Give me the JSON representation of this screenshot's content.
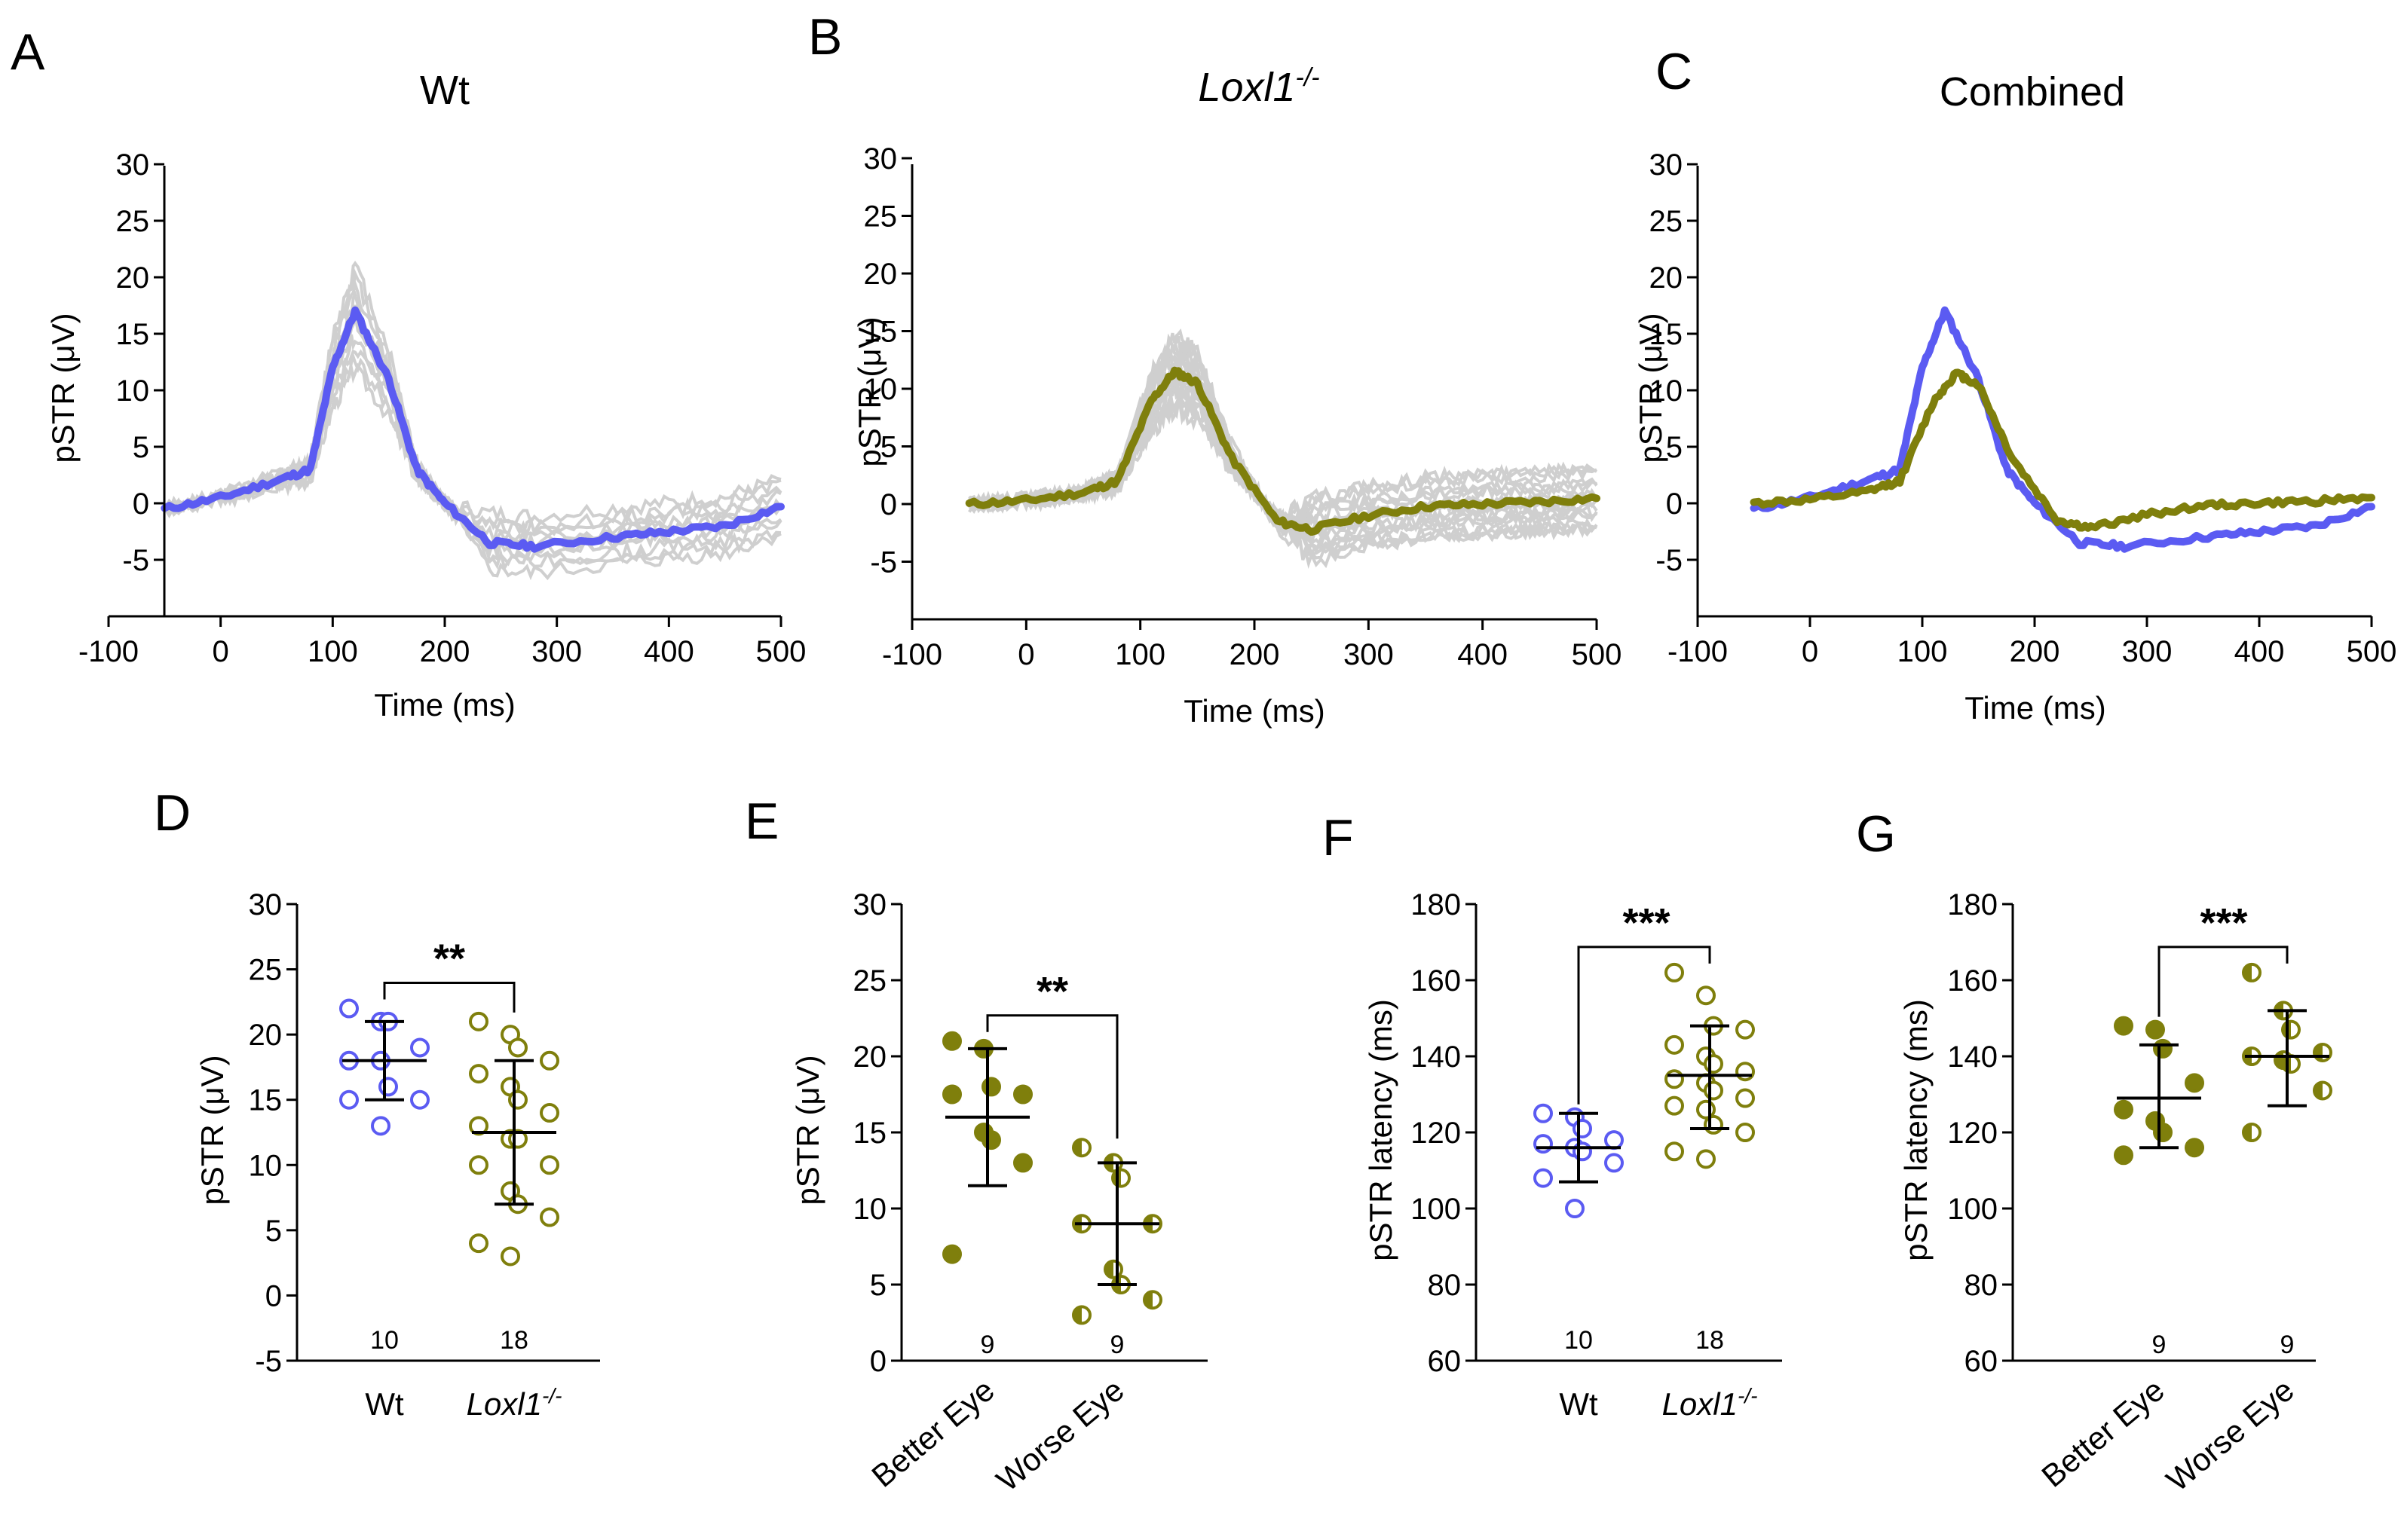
{
  "colors": {
    "wt": "#5b5bf2",
    "loxl1": "#7f7f0c",
    "individual": "#cfcfcf"
  },
  "chart_data": [
    {
      "id": "A",
      "type": "line",
      "title": "Wt",
      "xlabel": "Time (ms)",
      "ylabel": "pSTR (μV)",
      "xlim": [
        -100,
        500
      ],
      "ylim": [
        -10,
        30
      ],
      "xticks": [
        "-100",
        "0",
        "100",
        "200",
        "300",
        "400",
        "500"
      ],
      "yticks": [
        "-5",
        "0",
        "5",
        "10",
        "15",
        "20",
        "25",
        "30"
      ],
      "series": [
        {
          "name": "Wt mean",
          "color": "#5b5bf2",
          "x": [
            -50,
            0,
            50,
            80,
            100,
            120,
            150,
            175,
            200,
            240,
            280,
            350,
            400,
            450,
            500
          ],
          "y": [
            -0.5,
            0.5,
            2,
            3,
            12,
            17,
            11,
            3,
            0,
            -3.5,
            -3.8,
            -3,
            -2.5,
            -2,
            -0.3
          ]
        }
      ],
      "individual_traces": 10
    },
    {
      "id": "B",
      "type": "line",
      "title": "Loxl1-/-",
      "xlabel": "Time (ms)",
      "ylabel": "pSTR (μV)",
      "xlim": [
        -100,
        500
      ],
      "ylim": [
        -10,
        30
      ],
      "xticks": [
        "-100",
        "0",
        "100",
        "200",
        "300",
        "400",
        "500"
      ],
      "yticks": [
        "-5",
        "0",
        "5",
        "10",
        "15",
        "20",
        "25",
        "30"
      ],
      "series": [
        {
          "name": "Loxl1-/- mean",
          "color": "#7f7f0c",
          "x": [
            -50,
            0,
            50,
            80,
            110,
            130,
            150,
            180,
            220,
            250,
            300,
            350,
            400,
            450,
            500
          ],
          "y": [
            0,
            0.3,
            1,
            2,
            9,
            11.5,
            10.5,
            4,
            -1.5,
            -2.2,
            -1,
            -0.2,
            0,
            0.2,
            0.5
          ]
        }
      ],
      "individual_traces": 18
    },
    {
      "id": "C",
      "type": "line",
      "title": "Combined",
      "xlabel": "Time (ms)",
      "ylabel": "pSTR (μV)",
      "xlim": [
        -100,
        500
      ],
      "ylim": [
        -10,
        30
      ],
      "xticks": [
        "-100",
        "0",
        "100",
        "200",
        "300",
        "400",
        "500"
      ],
      "yticks": [
        "-5",
        "0",
        "5",
        "10",
        "15",
        "20",
        "25",
        "30"
      ],
      "series": [
        {
          "name": "Wt mean",
          "color": "#5b5bf2",
          "x": [
            -50,
            0,
            50,
            80,
            100,
            120,
            150,
            175,
            200,
            240,
            280,
            350,
            400,
            450,
            500
          ],
          "y": [
            -0.5,
            0.5,
            2,
            3,
            12,
            17,
            11,
            3,
            0,
            -3.5,
            -3.8,
            -3,
            -2.5,
            -2,
            -0.3
          ]
        },
        {
          "name": "Loxl1-/- mean",
          "color": "#7f7f0c",
          "x": [
            -50,
            0,
            50,
            80,
            110,
            130,
            150,
            180,
            220,
            250,
            300,
            350,
            400,
            450,
            500
          ],
          "y": [
            0,
            0.3,
            1,
            2,
            9,
            11.5,
            10.5,
            4,
            -1.5,
            -2.2,
            -1,
            -0.2,
            0,
            0.2,
            0.5
          ]
        }
      ]
    },
    {
      "id": "D",
      "type": "scatter",
      "ylabel": "pSTR (μV)",
      "ylim": [
        -5,
        30
      ],
      "yticks": [
        "-5",
        "0",
        "5",
        "10",
        "15",
        "20",
        "25",
        "30"
      ],
      "significance": "**",
      "groups": [
        {
          "name": "Wt",
          "n": "10",
          "mean": 18,
          "sd_low": 15,
          "sd_high": 21,
          "color": "#5b5bf2",
          "values": [
            22,
            21,
            21,
            19,
            18,
            18,
            16,
            15,
            15,
            13
          ],
          "fill": [
            "open",
            "open",
            "open",
            "open",
            "open",
            "open",
            "open",
            "open",
            "open",
            "open"
          ]
        },
        {
          "name": "Loxl1-/-",
          "n": "18",
          "mean": 12.5,
          "sd_low": 7,
          "sd_high": 18,
          "color": "#7f7f0c",
          "values": [
            21,
            20,
            19,
            18,
            17,
            16,
            15,
            14,
            13,
            12,
            12,
            10,
            10,
            8,
            7,
            6,
            4,
            3
          ],
          "fill": [
            "open",
            "open",
            "open",
            "open",
            "open",
            "open",
            "open",
            "open",
            "open",
            "open",
            "open",
            "open",
            "open",
            "open",
            "open",
            "open",
            "open",
            "open"
          ]
        }
      ]
    },
    {
      "id": "E",
      "type": "scatter",
      "ylabel": "pSTR (μV)",
      "ylim": [
        0,
        30
      ],
      "yticks": [
        "0",
        "5",
        "10",
        "15",
        "20",
        "25",
        "30"
      ],
      "significance": "**",
      "groups": [
        {
          "name": "Better Eye",
          "n": "9",
          "mean": 16,
          "sd_low": 11.5,
          "sd_high": 20.5,
          "color": "#7f7f0c",
          "values": [
            21,
            20.5,
            18,
            17.5,
            17.5,
            15,
            14.5,
            13,
            7
          ],
          "fill": [
            "filled",
            "filled",
            "filled",
            "filled",
            "filled",
            "filled",
            "filled",
            "filled",
            "filled"
          ]
        },
        {
          "name": "Worse Eye",
          "n": "9",
          "mean": 9,
          "sd_low": 5,
          "sd_high": 13,
          "color": "#7f7f0c",
          "values": [
            14,
            13,
            12,
            9,
            9,
            6,
            5,
            4,
            3
          ],
          "fill": [
            "half",
            "half",
            "half",
            "half",
            "half",
            "half",
            "half",
            "half",
            "half"
          ]
        }
      ]
    },
    {
      "id": "F",
      "type": "scatter",
      "ylabel": "pSTR latency (ms)",
      "ylim": [
        60,
        180
      ],
      "yticks": [
        "60",
        "80",
        "100",
        "120",
        "140",
        "160",
        "180"
      ],
      "significance": "***",
      "groups": [
        {
          "name": "Wt",
          "n": "10",
          "mean": 116,
          "sd_low": 107,
          "sd_high": 125,
          "color": "#5b5bf2",
          "values": [
            125,
            124,
            121,
            118,
            117,
            116,
            115,
            112,
            108,
            100
          ],
          "fill": [
            "open",
            "open",
            "open",
            "open",
            "open",
            "open",
            "open",
            "open",
            "open",
            "open"
          ]
        },
        {
          "name": "Loxl1-/-",
          "n": "18",
          "mean": 135,
          "sd_low": 121,
          "sd_high": 148,
          "color": "#7f7f0c",
          "values": [
            162,
            156,
            148,
            147,
            143,
            140,
            138,
            136,
            134,
            133,
            131,
            129,
            127,
            126,
            122,
            120,
            115,
            113
          ],
          "fill": [
            "open",
            "open",
            "open",
            "open",
            "open",
            "open",
            "open",
            "open",
            "open",
            "open",
            "open",
            "open",
            "open",
            "open",
            "open",
            "open",
            "open",
            "open"
          ]
        }
      ]
    },
    {
      "id": "G",
      "type": "scatter",
      "ylabel": "pSTR latency (ms)",
      "ylim": [
        60,
        180
      ],
      "yticks": [
        "60",
        "80",
        "100",
        "120",
        "140",
        "160",
        "180"
      ],
      "significance": "***",
      "groups": [
        {
          "name": "Better Eye",
          "n": "9",
          "mean": 129,
          "sd_low": 116,
          "sd_high": 143,
          "color": "#7f7f0c",
          "values": [
            148,
            147,
            142,
            133,
            126,
            123,
            120,
            116,
            114
          ],
          "fill": [
            "filled",
            "filled",
            "filled",
            "filled",
            "filled",
            "filled",
            "filled",
            "filled",
            "filled"
          ]
        },
        {
          "name": "Worse Eye",
          "n": "9",
          "mean": 140,
          "sd_low": 127,
          "sd_high": 152,
          "color": "#7f7f0c",
          "values": [
            162,
            152,
            147,
            141,
            140,
            139,
            138,
            131,
            120
          ],
          "fill": [
            "half",
            "half",
            "half",
            "half",
            "half",
            "half",
            "half",
            "half",
            "half"
          ]
        }
      ]
    }
  ],
  "panel_labels": [
    "A",
    "B",
    "C",
    "D",
    "E",
    "F",
    "G"
  ],
  "titles": {
    "a": "Wt",
    "b_main": "Loxl1",
    "b_sup": "-/-",
    "c": "Combined"
  },
  "axis_labels": {
    "time": "Time (ms)",
    "pstr": "pSTR (μV)",
    "latency": "pSTR latency (ms)"
  },
  "groups": {
    "wt": "Wt",
    "loxl1_main": "Loxl1",
    "loxl1_sup": "-/-",
    "better": "Better Eye",
    "worse": "Worse Eye"
  },
  "n_labels": {
    "wt": "10",
    "loxl1": "18",
    "eye": "9"
  },
  "stars": {
    "d": "**",
    "e": "**",
    "f": "***",
    "g": "***"
  }
}
